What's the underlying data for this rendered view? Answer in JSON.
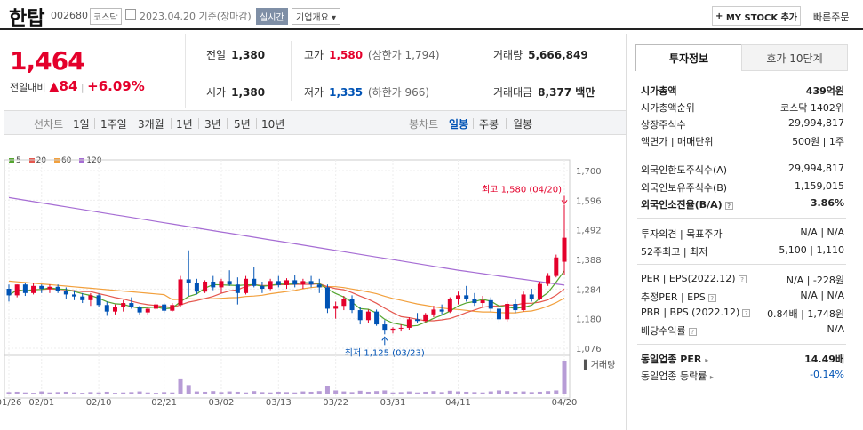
{
  "header": {
    "name": "한탑",
    "code": "002680",
    "market": "코스닥",
    "date": "2023.04.20 기준(장마감)",
    "realtime": "실시간",
    "overview": "기업개요",
    "mystock": "MY STOCK 추가",
    "quick_order": "빠른주문"
  },
  "price": {
    "current": "1,464",
    "change_label": "전일대비",
    "change_value": "84",
    "change_pct": "+6.09%"
  },
  "quotes": {
    "prev_close_label": "전일",
    "prev_close": "1,380",
    "high_label": "고가",
    "high": "1,580",
    "upper_limit": "(상한가 1,794)",
    "volume_label": "거래량",
    "volume": "5,666,849",
    "open_label": "시가",
    "open": "1,380",
    "low_label": "저가",
    "low": "1,335",
    "lower_limit": "(하한가 966)",
    "amount_label": "거래대금",
    "amount": "8,377 백만"
  },
  "tabs": {
    "line_chart": "선차트",
    "periods": [
      "1일",
      "1주일",
      "3개월",
      "1년",
      "3년",
      "5년",
      "10년"
    ],
    "candle_chart": "봉차트",
    "candle_periods": [
      "일봉",
      "주봉",
      "월봉"
    ]
  },
  "legend": [
    "5",
    "20",
    "60",
    "120"
  ],
  "colors": {
    "up": "#e4002b",
    "down": "#0053b5",
    "ma5": "#55a630",
    "ma20": "#e5584f",
    "ma60": "#f2a03d",
    "ma120": "#a66dd4",
    "volume": "#b79cd6"
  },
  "chart_data": {
    "type": "candlestick",
    "ylim": [
      1076,
      1700
    ],
    "yticks": [
      "1,700",
      "1,596",
      "1,492",
      "1,388",
      "1,284",
      "1,180",
      "1,076"
    ],
    "xticks": [
      "01/26",
      "02/01",
      "02/10",
      "02/21",
      "03/02",
      "03/13",
      "03/22",
      "03/31",
      "04/11",
      "04/20"
    ],
    "volume_label": "거래량",
    "high_annotation": "최고 1,580 (04/20)",
    "low_annotation": "최저 1,125 (03/23)",
    "candles": [
      [
        1285,
        1300,
        1240,
        1262
      ],
      [
        1262,
        1300,
        1255,
        1300
      ],
      [
        1300,
        1305,
        1260,
        1270
      ],
      [
        1270,
        1305,
        1265,
        1295
      ],
      [
        1295,
        1300,
        1270,
        1285
      ],
      [
        1285,
        1300,
        1270,
        1292
      ],
      [
        1292,
        1300,
        1270,
        1278
      ],
      [
        1278,
        1290,
        1250,
        1265
      ],
      [
        1265,
        1280,
        1245,
        1258
      ],
      [
        1258,
        1270,
        1235,
        1245
      ],
      [
        1245,
        1270,
        1225,
        1262
      ],
      [
        1262,
        1268,
        1220,
        1228
      ],
      [
        1228,
        1240,
        1190,
        1205
      ],
      [
        1205,
        1230,
        1195,
        1222
      ],
      [
        1222,
        1245,
        1205,
        1235
      ],
      [
        1235,
        1255,
        1215,
        1220
      ],
      [
        1220,
        1225,
        1195,
        1202
      ],
      [
        1202,
        1222,
        1195,
        1215
      ],
      [
        1215,
        1240,
        1210,
        1230
      ],
      [
        1230,
        1235,
        1200,
        1208
      ],
      [
        1208,
        1235,
        1205,
        1228
      ],
      [
        1228,
        1330,
        1220,
        1318
      ],
      [
        1318,
        1420,
        1260,
        1305
      ],
      [
        1305,
        1320,
        1265,
        1275
      ],
      [
        1275,
        1315,
        1270,
        1310
      ],
      [
        1310,
        1330,
        1280,
        1290
      ],
      [
        1290,
        1320,
        1270,
        1312
      ],
      [
        1312,
        1350,
        1295,
        1300
      ],
      [
        1300,
        1325,
        1230,
        1270
      ],
      [
        1270,
        1330,
        1265,
        1320
      ],
      [
        1320,
        1360,
        1290,
        1295
      ],
      [
        1295,
        1310,
        1270,
        1285
      ],
      [
        1285,
        1320,
        1280,
        1312
      ],
      [
        1312,
        1330,
        1290,
        1298
      ],
      [
        1298,
        1322,
        1285,
        1315
      ],
      [
        1315,
        1335,
        1290,
        1300
      ],
      [
        1300,
        1320,
        1285,
        1312
      ],
      [
        1312,
        1330,
        1290,
        1300
      ],
      [
        1300,
        1320,
        1270,
        1290
      ],
      [
        1290,
        1300,
        1200,
        1215
      ],
      [
        1215,
        1240,
        1180,
        1225
      ],
      [
        1225,
        1260,
        1210,
        1250
      ],
      [
        1250,
        1262,
        1200,
        1210
      ],
      [
        1210,
        1222,
        1160,
        1175
      ],
      [
        1175,
        1212,
        1165,
        1205
      ],
      [
        1205,
        1212,
        1155,
        1160
      ],
      [
        1160,
        1175,
        1125,
        1138
      ],
      [
        1138,
        1150,
        1128,
        1145
      ],
      [
        1145,
        1160,
        1135,
        1148
      ],
      [
        1148,
        1185,
        1140,
        1178
      ],
      [
        1178,
        1200,
        1165,
        1172
      ],
      [
        1172,
        1200,
        1168,
        1195
      ],
      [
        1195,
        1225,
        1185,
        1212
      ],
      [
        1212,
        1230,
        1195,
        1205
      ],
      [
        1205,
        1255,
        1200,
        1248
      ],
      [
        1248,
        1275,
        1230,
        1262
      ],
      [
        1262,
        1295,
        1240,
        1250
      ],
      [
        1250,
        1270,
        1225,
        1235
      ],
      [
        1235,
        1260,
        1220,
        1245
      ],
      [
        1245,
        1255,
        1205,
        1215
      ],
      [
        1215,
        1230,
        1165,
        1178
      ],
      [
        1178,
        1240,
        1170,
        1232
      ],
      [
        1232,
        1250,
        1200,
        1210
      ],
      [
        1210,
        1275,
        1205,
        1265
      ],
      [
        1265,
        1285,
        1240,
        1250
      ],
      [
        1250,
        1310,
        1245,
        1302
      ],
      [
        1302,
        1340,
        1295,
        1330
      ],
      [
        1330,
        1405,
        1325,
        1395
      ],
      [
        1380,
        1580,
        1335,
        1464
      ]
    ],
    "volumes": [
      7,
      8,
      6,
      5,
      9,
      6,
      7,
      8,
      6,
      5,
      7,
      6,
      8,
      5,
      6,
      7,
      9,
      6,
      5,
      7,
      6,
      45,
      28,
      9,
      8,
      10,
      7,
      9,
      8,
      6,
      10,
      7,
      6,
      8,
      7,
      6,
      9,
      8,
      10,
      24,
      12,
      9,
      7,
      11,
      8,
      10,
      12,
      6,
      7,
      9,
      6,
      8,
      10,
      7,
      11,
      9,
      8,
      7,
      6,
      9,
      12,
      10,
      8,
      9,
      7,
      8,
      10,
      12,
      100
    ]
  },
  "panel": {
    "tab_invest": "투자정보",
    "tab_hoga": "호가 10단계",
    "market_cap_label": "시가총액",
    "market_cap": "439억원",
    "rank_label": "시가총액순위",
    "rank": "코스닥 1402위",
    "shares_label": "상장주식수",
    "shares": "29,994,817",
    "par_label": "액면가 | 매매단위",
    "par": "500원 | 1주",
    "foreign_limit_label": "외국인한도주식수(A)",
    "foreign_limit": "29,994,817",
    "foreign_hold_label": "외국인보유주식수(B)",
    "foreign_hold": "1,159,015",
    "foreign_ratio_label": "외국인소진율(B/A)",
    "foreign_ratio": "3.86%",
    "opinion_label": "투자의견 | 목표주가",
    "opinion": "N/A | N/A",
    "w52_label": "52주최고 | 최저",
    "w52": "5,100 | 1,110",
    "per_label": "PER | EPS(2022.12)",
    "per": "N/A | -228원",
    "est_per_label": "추정PER | EPS",
    "est_per": "N/A | N/A",
    "pbr_label": "PBR | BPS (2022.12)",
    "pbr": "0.84배 | 1,748원",
    "div_label": "배당수익률",
    "div": "N/A",
    "industry_per_label": "동일업종 PER",
    "industry_per": "14.49배",
    "industry_chg_label": "동일업종 등락률",
    "industry_chg": "-0.14%"
  }
}
